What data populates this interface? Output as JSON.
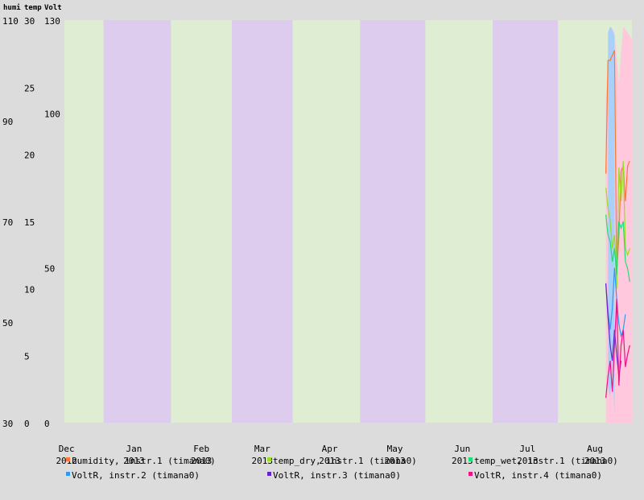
{
  "chart_data": {
    "type": "line",
    "title": "",
    "axis_headers": [
      "humi",
      "temp",
      "Volt"
    ],
    "axes": {
      "humi": {
        "ylim": [
          30,
          110
        ],
        "ticks": [
          30,
          50,
          70,
          90,
          110
        ]
      },
      "temp": {
        "ylim": [
          0,
          30
        ],
        "ticks": [
          0,
          5,
          10,
          15,
          20,
          25,
          30
        ]
      },
      "volt": {
        "ylim": [
          0,
          130
        ],
        "ticks": [
          0,
          50,
          100,
          130
        ]
      }
    },
    "x_axis": {
      "type": "date",
      "range": [
        "2012-11-30",
        "2013-08-18"
      ],
      "ticks": [
        {
          "date": "2012-12-01",
          "month": "Dec",
          "year": "2012"
        },
        {
          "date": "2013-01-01",
          "month": "Jan",
          "year": "2013"
        },
        {
          "date": "2013-02-01",
          "month": "Feb",
          "year": "2013"
        },
        {
          "date": "2013-03-01",
          "month": "Mar",
          "year": "2013"
        },
        {
          "date": "2013-04-01",
          "month": "Apr",
          "year": "2013"
        },
        {
          "date": "2013-05-01",
          "month": "May",
          "year": "2013"
        },
        {
          "date": "2013-06-01",
          "month": "Jun",
          "year": "2013"
        },
        {
          "date": "2013-07-01",
          "month": "Jul",
          "year": "2013"
        },
        {
          "date": "2013-08-01",
          "month": "Aug",
          "year": "2013"
        }
      ]
    },
    "bands": {
      "even_color": "#dfeed2",
      "odd_color": "#ddcced",
      "boundaries": [
        "2012-11-30",
        "2012-12-18",
        "2013-01-18",
        "2013-02-15",
        "2013-03-15",
        "2013-04-15",
        "2013-05-15",
        "2013-06-15",
        "2013-07-15",
        "2013-08-18"
      ]
    },
    "series": [
      {
        "name": "humidity, instr.1 (timana0)",
        "axis": "humi",
        "color": "#ff7733",
        "points": [
          [
            "2013-08-06",
            79.5
          ],
          [
            "2013-08-07",
            102
          ],
          [
            "2013-08-08",
            102
          ],
          [
            "2013-08-09",
            103
          ],
          [
            "2013-08-10",
            104
          ],
          [
            "2013-08-11",
            60
          ],
          [
            "2013-08-12",
            67
          ],
          [
            "2013-08-13",
            80
          ],
          [
            "2013-08-14",
            81
          ],
          [
            "2013-08-15",
            74
          ],
          [
            "2013-08-16",
            81
          ],
          [
            "2013-08-17",
            82
          ]
        ]
      },
      {
        "name": "temp_dry, instr.1 (timana0)",
        "axis": "temp",
        "color": "#99dd22",
        "points": [
          [
            "2013-08-06",
            17.5
          ],
          [
            "2013-08-07",
            16
          ],
          [
            "2013-08-08",
            15
          ],
          [
            "2013-08-09",
            13
          ],
          [
            "2013-08-10",
            14
          ],
          [
            "2013-08-11",
            10
          ],
          [
            "2013-08-12",
            19
          ],
          [
            "2013-08-13",
            16.5
          ],
          [
            "2013-08-14",
            19.5
          ],
          [
            "2013-08-15",
            13
          ],
          [
            "2013-08-16",
            12.5
          ],
          [
            "2013-08-17",
            13
          ]
        ]
      },
      {
        "name": "temp_wet, instr.1 (timana0)",
        "axis": "temp",
        "color": "#22dd77",
        "points": [
          [
            "2013-08-06",
            15.5
          ],
          [
            "2013-08-07",
            14
          ],
          [
            "2013-08-08",
            13.5
          ],
          [
            "2013-08-09",
            12
          ],
          [
            "2013-08-10",
            13
          ],
          [
            "2013-08-11",
            11
          ],
          [
            "2013-08-12",
            15
          ],
          [
            "2013-08-13",
            14.5
          ],
          [
            "2013-08-14",
            15
          ],
          [
            "2013-08-15",
            12
          ],
          [
            "2013-08-16",
            11.5
          ],
          [
            "2013-08-17",
            10.5
          ]
        ]
      },
      {
        "name": "VoltR, instr.2 (timana0)",
        "axis": "volt",
        "color": "#3399ee",
        "points": [
          [
            "2013-08-06",
            45
          ],
          [
            "2013-08-07",
            36
          ],
          [
            "2013-08-08",
            30
          ],
          [
            "2013-08-09",
            37
          ],
          [
            "2013-08-10",
            50
          ],
          [
            "2013-08-11",
            40
          ],
          [
            "2013-08-12",
            32
          ],
          [
            "2013-08-13",
            28
          ],
          [
            "2013-08-14",
            30
          ],
          [
            "2013-08-15",
            35
          ]
        ]
      },
      {
        "name": "VoltR, instr.3 (timana0)",
        "axis": "volt",
        "color": "#6622cc",
        "points": [
          [
            "2013-08-06",
            45
          ],
          [
            "2013-08-07",
            34
          ],
          [
            "2013-08-08",
            25
          ],
          [
            "2013-08-09",
            20
          ],
          [
            "2013-08-10",
            30
          ],
          [
            "2013-08-11",
            22
          ],
          [
            "2013-08-12",
            15
          ],
          [
            "2013-08-13",
            20
          ]
        ]
      },
      {
        "name": "VoltR, instr.4 (timana0)",
        "axis": "volt",
        "color": "#ee1188",
        "points": [
          [
            "2013-08-06",
            8
          ],
          [
            "2013-08-07",
            15
          ],
          [
            "2013-08-08",
            20
          ],
          [
            "2013-08-09",
            10
          ],
          [
            "2013-08-10",
            25
          ],
          [
            "2013-08-11",
            40
          ],
          [
            "2013-08-12",
            12
          ],
          [
            "2013-08-13",
            25
          ],
          [
            "2013-08-14",
            30
          ],
          [
            "2013-08-15",
            18
          ],
          [
            "2013-08-16",
            22
          ],
          [
            "2013-08-17",
            25
          ]
        ]
      }
    ],
    "ranges": [
      {
        "axis": "volt",
        "color": "#ffc8dc",
        "points": [
          [
            "2013-08-06",
            0,
            105
          ],
          [
            "2013-08-08",
            0,
            128
          ],
          [
            "2013-08-10",
            0,
            126
          ],
          [
            "2013-08-12",
            0,
            110
          ],
          [
            "2013-08-14",
            0,
            128
          ],
          [
            "2013-08-16",
            0,
            126
          ],
          [
            "2013-08-18",
            0,
            124
          ]
        ]
      },
      {
        "axis": "volt",
        "color": "#a8d0f8",
        "points": [
          [
            "2013-08-07",
            12,
            126
          ],
          [
            "2013-08-08",
            8,
            128
          ],
          [
            "2013-08-09",
            20,
            127
          ],
          [
            "2013-08-10",
            2,
            125
          ]
        ]
      }
    ],
    "legend": {
      "placement": "bottom"
    }
  }
}
